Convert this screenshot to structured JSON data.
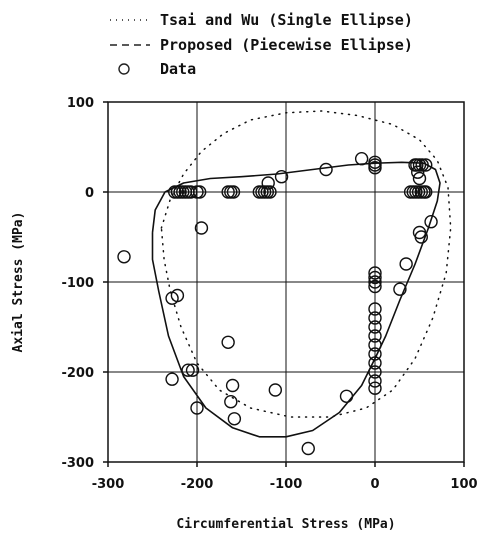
{
  "chart_data": {
    "type": "scatter",
    "xlabel": "Circumferential Stress (MPa)",
    "ylabel": "Axial Stress (MPa)",
    "xlim": [
      -300,
      100
    ],
    "ylim": [
      -300,
      100
    ],
    "xticks": [
      -300,
      -200,
      -100,
      0,
      100
    ],
    "yticks": [
      100,
      0,
      -100,
      -200,
      -300
    ],
    "grid": true,
    "legend_position": "top",
    "legend": [
      {
        "label": "Tsai and Wu (Single Ellipse)",
        "style": "dotted"
      },
      {
        "label": "Proposed (Piecewise Ellipse)",
        "style": "dashed"
      },
      {
        "label": "Data",
        "style": "circle-marker"
      }
    ],
    "series": [
      {
        "name": "Tsai and Wu (Single Ellipse)",
        "kind": "dotted-curve",
        "points": [
          [
            -240,
            -40
          ],
          [
            -230,
            -8
          ],
          [
            -215,
            20
          ],
          [
            -195,
            45
          ],
          [
            -170,
            65
          ],
          [
            -140,
            80
          ],
          [
            -100,
            88
          ],
          [
            -60,
            90
          ],
          [
            -20,
            85
          ],
          [
            20,
            75
          ],
          [
            50,
            58
          ],
          [
            70,
            35
          ],
          [
            82,
            5
          ],
          [
            85,
            -40
          ],
          [
            80,
            -90
          ],
          [
            65,
            -140
          ],
          [
            45,
            -185
          ],
          [
            20,
            -220
          ],
          [
            -10,
            -240
          ],
          [
            -50,
            -250
          ],
          [
            -95,
            -250
          ],
          [
            -140,
            -240
          ],
          [
            -175,
            -220
          ],
          [
            -200,
            -190
          ],
          [
            -218,
            -150
          ],
          [
            -230,
            -110
          ],
          [
            -237,
            -75
          ],
          [
            -240,
            -40
          ]
        ]
      },
      {
        "name": "Proposed (Piecewise Ellipse)",
        "kind": "solid-curve",
        "points": [
          [
            -250,
            -45
          ],
          [
            -247,
            -20
          ],
          [
            -236,
            0
          ],
          [
            -215,
            10
          ],
          [
            -185,
            15
          ],
          [
            -150,
            17
          ],
          [
            -110,
            20
          ],
          [
            -70,
            25
          ],
          [
            -30,
            30
          ],
          [
            0,
            32
          ],
          [
            30,
            33
          ],
          [
            55,
            32
          ],
          [
            68,
            25
          ],
          [
            73,
            10
          ],
          [
            70,
            -10
          ],
          [
            60,
            -40
          ],
          [
            45,
            -80
          ],
          [
            28,
            -120
          ],
          [
            12,
            -160
          ],
          [
            0,
            -185
          ],
          [
            -15,
            -215
          ],
          [
            -40,
            -245
          ],
          [
            -70,
            -265
          ],
          [
            -100,
            -272
          ],
          [
            -130,
            -272
          ],
          [
            -160,
            -262
          ],
          [
            -190,
            -240
          ],
          [
            -215,
            -205
          ],
          [
            -232,
            -160
          ],
          [
            -243,
            -110
          ],
          [
            -250,
            -75
          ],
          [
            -250,
            -45
          ]
        ]
      },
      {
        "name": "Data",
        "kind": "markers",
        "points": [
          [
            -225,
            0
          ],
          [
            -222,
            0
          ],
          [
            -219,
            0
          ],
          [
            -216,
            0
          ],
          [
            -213,
            0
          ],
          [
            -210,
            0
          ],
          [
            -207,
            0
          ],
          [
            -200,
            0
          ],
          [
            -197,
            0
          ],
          [
            -165,
            0
          ],
          [
            -162,
            0
          ],
          [
            -159,
            0
          ],
          [
            -130,
            0
          ],
          [
            -127,
            0
          ],
          [
            -124,
            0
          ],
          [
            -121,
            0
          ],
          [
            -118,
            0
          ],
          [
            -120,
            10
          ],
          [
            -105,
            17
          ],
          [
            -55,
            25
          ],
          [
            -15,
            37
          ],
          [
            0,
            33
          ],
          [
            0,
            30
          ],
          [
            0,
            27
          ],
          [
            45,
            30
          ],
          [
            47,
            30
          ],
          [
            50,
            30
          ],
          [
            53,
            30
          ],
          [
            57,
            30
          ],
          [
            40,
            0
          ],
          [
            43,
            0
          ],
          [
            46,
            0
          ],
          [
            49,
            0
          ],
          [
            52,
            0
          ],
          [
            55,
            0
          ],
          [
            48,
            22
          ],
          [
            50,
            15
          ],
          [
            57,
            0
          ],
          [
            63,
            -33
          ],
          [
            50,
            -45
          ],
          [
            52,
            -50
          ],
          [
            35,
            -80
          ],
          [
            28,
            -108
          ],
          [
            0,
            -90
          ],
          [
            0,
            -95
          ],
          [
            0,
            -100
          ],
          [
            0,
            -105
          ],
          [
            0,
            -130
          ],
          [
            0,
            -140
          ],
          [
            0,
            -150
          ],
          [
            0,
            -160
          ],
          [
            0,
            -170
          ],
          [
            0,
            -180
          ],
          [
            0,
            -190
          ],
          [
            0,
            -200
          ],
          [
            0,
            -210
          ],
          [
            0,
            -218
          ],
          [
            -195,
            -40
          ],
          [
            -282,
            -72
          ],
          [
            -228,
            -118
          ],
          [
            -222,
            -115
          ],
          [
            -165,
            -167
          ],
          [
            -228,
            -208
          ],
          [
            -210,
            -198
          ],
          [
            -205,
            -198
          ],
          [
            -200,
            -240
          ],
          [
            -160,
            -215
          ],
          [
            -162,
            -233
          ],
          [
            -158,
            -252
          ],
          [
            -112,
            -220
          ],
          [
            -32,
            -227
          ],
          [
            -75,
            -285
          ]
        ]
      }
    ]
  }
}
